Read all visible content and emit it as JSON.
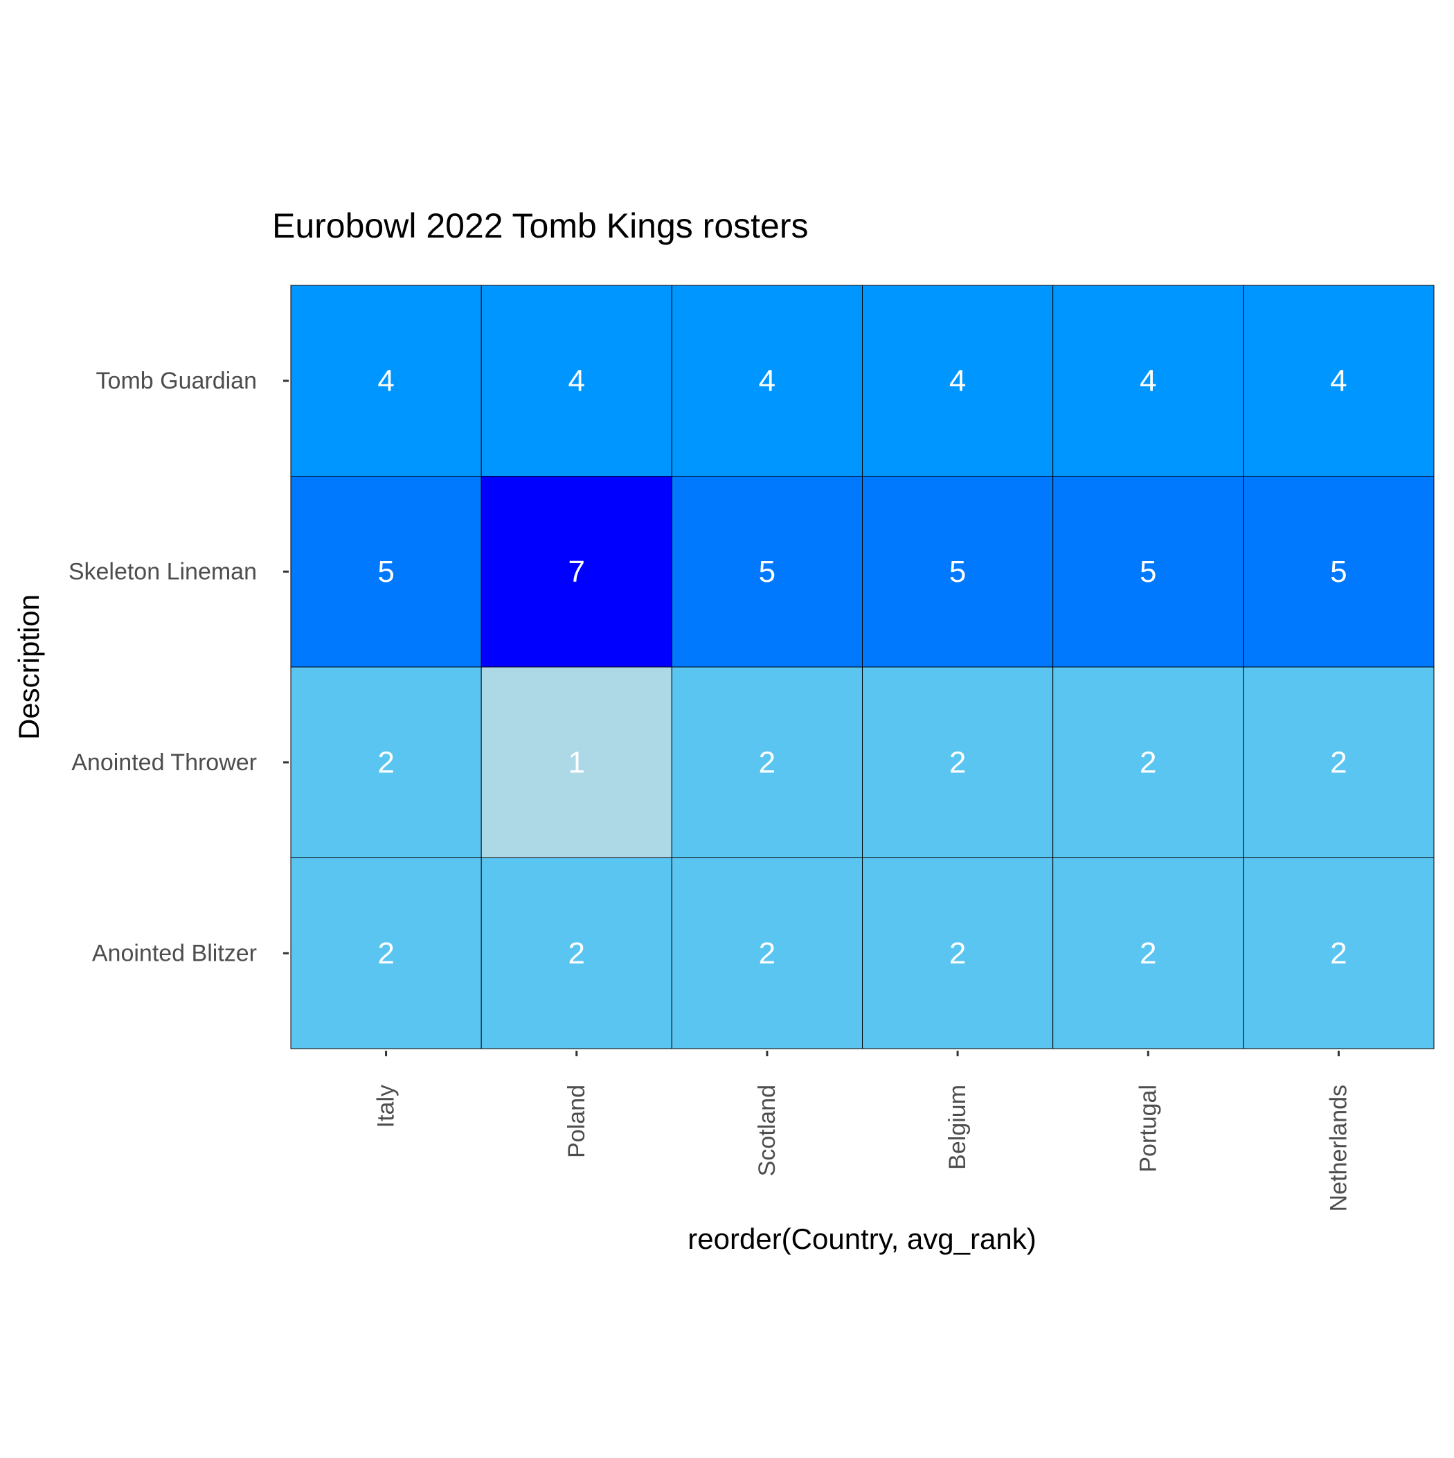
{
  "chart_data": {
    "type": "heatmap",
    "title": "Eurobowl 2022 Tomb Kings rosters",
    "xlabel": "reorder(Country, avg_rank)",
    "ylabel": "Description",
    "x_categories": [
      "Italy",
      "Poland",
      "Scotland",
      "Belgium",
      "Portugal",
      "Netherlands"
    ],
    "y_categories": [
      "Tomb Guardian",
      "Skeleton Lineman",
      "Anointed Thrower",
      "Anointed Blitzer"
    ],
    "values": [
      [
        4,
        4,
        4,
        4,
        4,
        4
      ],
      [
        5,
        7,
        5,
        5,
        5,
        5
      ],
      [
        2,
        1,
        2,
        2,
        2,
        2
      ],
      [
        2,
        2,
        2,
        2,
        2,
        2
      ]
    ],
    "color_scale": {
      "low": "#add8e6",
      "high": "#0000ff",
      "min": 1,
      "max": 7
    },
    "cell_label_color": "#ffffff",
    "cell_border_color": "#000000",
    "grid": false,
    "legend": "none"
  }
}
